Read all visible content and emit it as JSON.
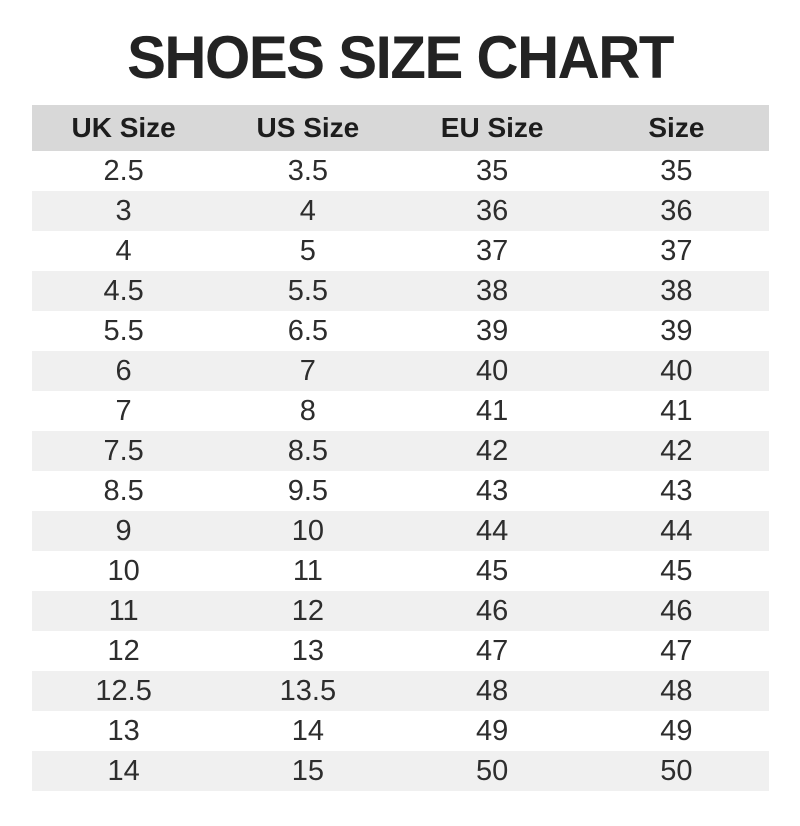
{
  "title": "SHOES SIZE CHART",
  "table": {
    "columns": [
      "UK Size",
      "US Size",
      "EU Size",
      "Size"
    ],
    "rows": [
      [
        "2.5",
        "3.5",
        "35",
        "35"
      ],
      [
        "3",
        "4",
        "36",
        "36"
      ],
      [
        "4",
        "5",
        "37",
        "37"
      ],
      [
        "4.5",
        "5.5",
        "38",
        "38"
      ],
      [
        "5.5",
        "6.5",
        "39",
        "39"
      ],
      [
        "6",
        "7",
        "40",
        "40"
      ],
      [
        "7",
        "8",
        "41",
        "41"
      ],
      [
        "7.5",
        "8.5",
        "42",
        "42"
      ],
      [
        "8.5",
        "9.5",
        "43",
        "43"
      ],
      [
        "9",
        "10",
        "44",
        "44"
      ],
      [
        "10",
        "11",
        "45",
        "45"
      ],
      [
        "11",
        "12",
        "46",
        "46"
      ],
      [
        "12",
        "13",
        "47",
        "47"
      ],
      [
        "12.5",
        "13.5",
        "48",
        "48"
      ],
      [
        "13",
        "14",
        "49",
        "49"
      ],
      [
        "14",
        "15",
        "50",
        "50"
      ]
    ]
  },
  "colors": {
    "header_bg": "#d8d8d8",
    "stripe_bg": "#f0f0f0",
    "title_text": "#232323",
    "cell_text": "#2d2d2d"
  }
}
